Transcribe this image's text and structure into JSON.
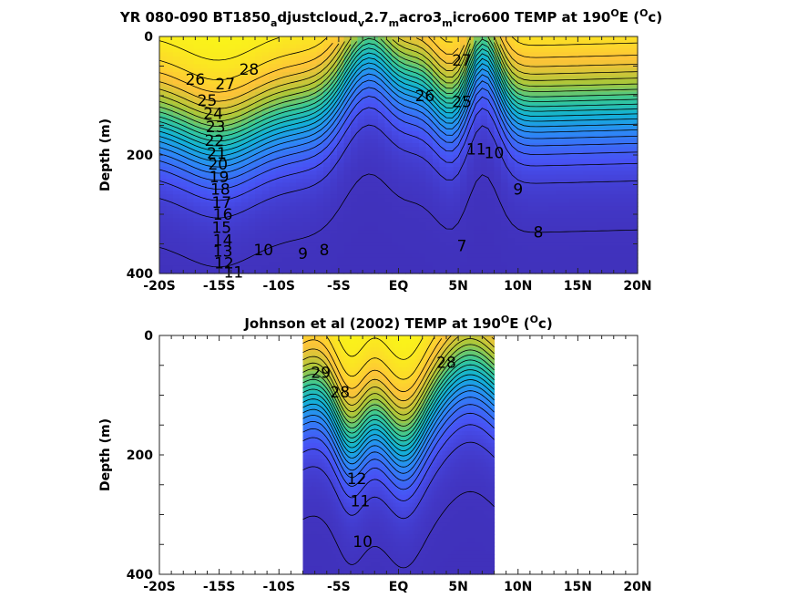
{
  "chart_data": [
    {
      "type": "contour",
      "title": {
        "parts": [
          {
            "t": "YR 080-090 BT1850",
            "s": "n"
          },
          {
            "t": "a",
            "s": "sub"
          },
          {
            "t": "djustcloud",
            "s": "n"
          },
          {
            "t": "v",
            "s": "sub"
          },
          {
            "t": "2.7",
            "s": "n"
          },
          {
            "t": "m",
            "s": "sub"
          },
          {
            "t": "acro3",
            "s": "n"
          },
          {
            "t": "m",
            "s": "sub"
          },
          {
            "t": "icro600 TEMP at 190",
            "s": "n"
          },
          {
            "t": "O",
            "s": "sup"
          },
          {
            "t": "E (",
            "s": "n"
          },
          {
            "t": "O",
            "s": "sup"
          },
          {
            "t": "c)",
            "s": "n"
          }
        ]
      },
      "ylabel": "Depth (m)",
      "xlim": [
        -20,
        20
      ],
      "ylim": [
        0,
        400
      ],
      "y_reversed": true,
      "xticks": [
        "-20S",
        "-15S",
        "-10S",
        "-5S",
        "EQ",
        "5N",
        "10N",
        "15N",
        "20N"
      ],
      "yticks": [
        "0",
        "200",
        "400"
      ],
      "colormap": "parula",
      "color_range": [
        6,
        29
      ],
      "data_extent": [
        -20,
        20
      ],
      "contour_labels": [
        {
          "text": "28",
          "x": -12.5,
          "y": 55
        },
        {
          "text": "27",
          "x": -14.5,
          "y": 80
        },
        {
          "text": "26",
          "x": -17.0,
          "y": 72
        },
        {
          "text": "25",
          "x": -16.0,
          "y": 108
        },
        {
          "text": "24",
          "x": -15.5,
          "y": 130
        },
        {
          "text": "23",
          "x": -15.3,
          "y": 152
        },
        {
          "text": "22",
          "x": -15.4,
          "y": 175
        },
        {
          "text": "21",
          "x": -15.2,
          "y": 197
        },
        {
          "text": "20",
          "x": -15.1,
          "y": 215
        },
        {
          "text": "19",
          "x": -15.0,
          "y": 237
        },
        {
          "text": "18",
          "x": -14.9,
          "y": 258
        },
        {
          "text": "17",
          "x": -14.8,
          "y": 280
        },
        {
          "text": "16",
          "x": -14.7,
          "y": 300
        },
        {
          "text": "15",
          "x": -14.8,
          "y": 322
        },
        {
          "text": "14",
          "x": -14.7,
          "y": 344
        },
        {
          "text": "13",
          "x": -14.7,
          "y": 362
        },
        {
          "text": "12",
          "x": -14.6,
          "y": 382
        },
        {
          "text": "11",
          "x": -13.8,
          "y": 398
        },
        {
          "text": "10",
          "x": -11.3,
          "y": 360
        },
        {
          "text": "9",
          "x": -8.0,
          "y": 366
        },
        {
          "text": "8",
          "x": -6.2,
          "y": 360
        },
        {
          "text": "7",
          "x": 5.3,
          "y": 353
        },
        {
          "text": "8",
          "x": 11.7,
          "y": 330
        },
        {
          "text": "9",
          "x": 10.0,
          "y": 258
        },
        {
          "text": "10",
          "x": 8.0,
          "y": 196
        },
        {
          "text": "11",
          "x": 6.5,
          "y": 190
        },
        {
          "text": "26",
          "x": 2.2,
          "y": 100
        },
        {
          "text": "27",
          "x": 5.3,
          "y": 40
        },
        {
          "text": "25",
          "x": 5.3,
          "y": 110
        }
      ]
    },
    {
      "type": "contour",
      "title": {
        "parts": [
          {
            "t": "Johnson et al (2002) TEMP at 190",
            "s": "n"
          },
          {
            "t": "O",
            "s": "sup"
          },
          {
            "t": "E (",
            "s": "n"
          },
          {
            "t": "O",
            "s": "sup"
          },
          {
            "t": "c)",
            "s": "n"
          }
        ]
      },
      "ylabel": "Depth (m)",
      "xlim": [
        -20,
        20
      ],
      "ylim": [
        0,
        400
      ],
      "y_reversed": true,
      "xticks": [
        "-20S",
        "-15S",
        "-10S",
        "-5S",
        "EQ",
        "5N",
        "10N",
        "15N",
        "20N"
      ],
      "yticks": [
        "0",
        "200",
        "400"
      ],
      "colormap": "parula",
      "color_range": [
        6,
        29
      ],
      "data_extent": [
        -8,
        8
      ],
      "contour_labels": [
        {
          "text": "29",
          "x": -6.5,
          "y": 62
        },
        {
          "text": "28",
          "x": 4.0,
          "y": 45
        },
        {
          "text": "28",
          "x": -4.9,
          "y": 95
        },
        {
          "text": "12",
          "x": -3.5,
          "y": 240
        },
        {
          "text": "11",
          "x": -3.2,
          "y": 277
        },
        {
          "text": "10",
          "x": -3.0,
          "y": 345
        }
      ]
    }
  ]
}
